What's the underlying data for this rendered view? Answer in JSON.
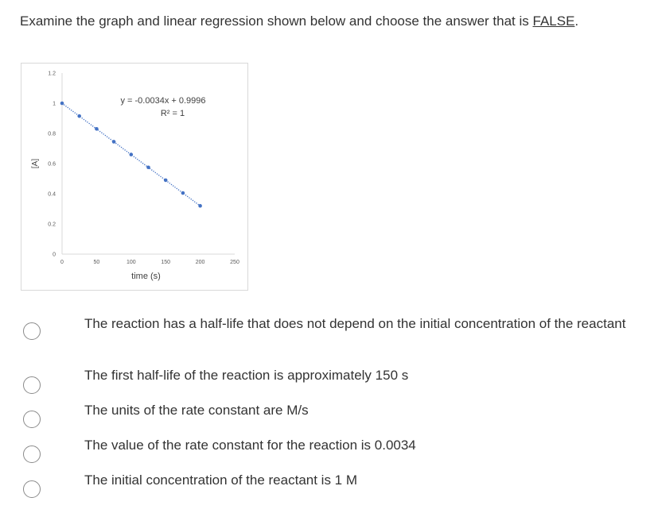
{
  "question": {
    "text_before": "Examine the graph and linear regression shown below and choose the answer that is ",
    "emphasis": "FALSE",
    "text_after": "."
  },
  "chart_data": {
    "type": "scatter",
    "title": "",
    "xlabel": "time (s)",
    "ylabel": "[A]",
    "xlim": [
      0,
      250
    ],
    "ylim": [
      0,
      1.2
    ],
    "x_ticks": [
      "0",
      "50",
      "100",
      "150",
      "200",
      "250"
    ],
    "y_ticks": [
      "0",
      "0.2",
      "0.4",
      "0.6",
      "0.8",
      "1",
      "1.2"
    ],
    "points": [
      {
        "x": 0,
        "y": 1.0
      },
      {
        "x": 25,
        "y": 0.915
      },
      {
        "x": 50,
        "y": 0.83
      },
      {
        "x": 75,
        "y": 0.745
      },
      {
        "x": 100,
        "y": 0.66
      },
      {
        "x": 125,
        "y": 0.575
      },
      {
        "x": 150,
        "y": 0.49
      },
      {
        "x": 175,
        "y": 0.405
      },
      {
        "x": 200,
        "y": 0.32
      }
    ],
    "trendline": {
      "type": "linear",
      "slope": -0.0034,
      "intercept": 0.9996,
      "style": "dotted"
    },
    "equation_label": "y = -0.0034x + 0.9996",
    "r2_label": "R² = 1",
    "grid": false,
    "marker_color": "#4472c4",
    "axis_color": "#d9d9d9"
  },
  "options": [
    {
      "label": "The reaction has a half-life that does not depend on the initial concentration of the reactant",
      "selected": false
    },
    {
      "label": "The first half-life of the reaction is approximately 150 s",
      "selected": false
    },
    {
      "label": "The units of the rate constant are M/s",
      "selected": false
    },
    {
      "label": "The value of the rate constant for the reaction is 0.0034",
      "selected": false
    },
    {
      "label": "The initial concentration of the reactant is 1 M",
      "selected": false
    }
  ]
}
